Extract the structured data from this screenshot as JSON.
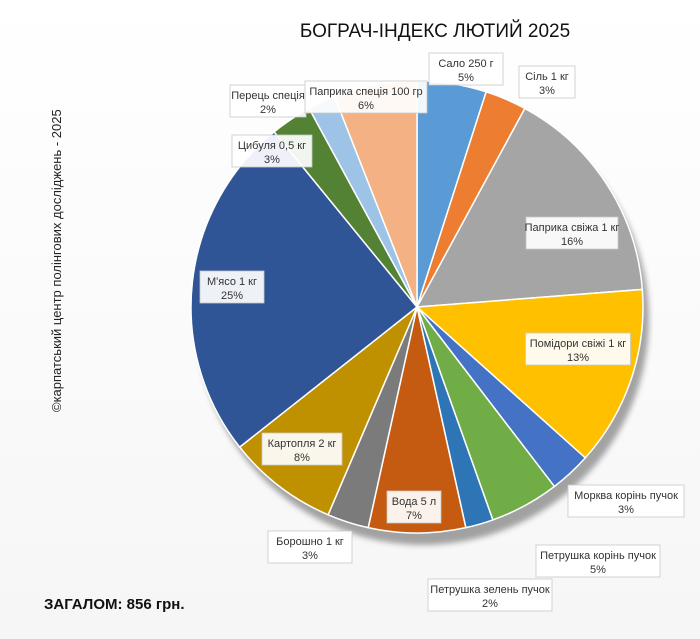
{
  "chart_data": {
    "type": "pie",
    "title": "БОГРАЧ-ІНДЕКС ЛЮТИЙ 2025",
    "slices": [
      {
        "name": "Сало 250 г",
        "value": 5,
        "label": "5%",
        "color": "#5a9bd5"
      },
      {
        "name": "Сіль 1 кг",
        "value": 3,
        "label": "3%",
        "color": "#ed7d31"
      },
      {
        "name": "Паприка свіжа 1 кг",
        "value": 16,
        "label": "16%",
        "color": "#a5a5a5"
      },
      {
        "name": "Помідори свіжі 1 кг",
        "value": 13,
        "label": "13%",
        "color": "#ffc000"
      },
      {
        "name": "Морква корінь пучок",
        "value": 3,
        "label": "3%",
        "color": "#4472c4"
      },
      {
        "name": "Петрушка корінь пучок",
        "value": 5,
        "label": "5%",
        "color": "#70ad47"
      },
      {
        "name": "Петрушка зелень пучок",
        "value": 2,
        "label": "2%",
        "color": "#2e75b6"
      },
      {
        "name": "Вода 5 л",
        "value": 7,
        "label": "7%",
        "color": "#c55a11"
      },
      {
        "name": "Борошно 1 кг",
        "value": 3,
        "label": "3%",
        "color": "#7b7b7b"
      },
      {
        "name": "Картопля 2 кг",
        "value": 8,
        "label": "8%",
        "color": "#bf9000"
      },
      {
        "name": "М'ясо 1 кг",
        "value": 25,
        "label": "25%",
        "color": "#2f5597"
      },
      {
        "name": "Цибуля 0,5 кг",
        "value": 3,
        "label": "3%",
        "color": "#548235"
      },
      {
        "name": "Перець спеція",
        "value": 2,
        "label": "2%",
        "color": "#9dc3e6"
      },
      {
        "name": "Паприка спеція 100 гр",
        "value": 6,
        "label": "6%",
        "color": "#f4b183"
      }
    ]
  },
  "side_text": "©карпатський центр полінгових досліджень - 2025",
  "total_text": "ЗАГАЛОМ: 856  грн."
}
